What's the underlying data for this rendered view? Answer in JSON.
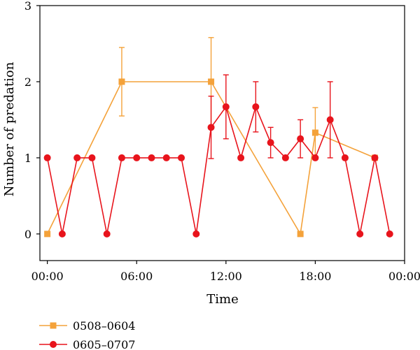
{
  "chart_data": {
    "type": "line",
    "xlabel": "Time",
    "ylabel": "Number of predation",
    "x_unit": "hour",
    "xlim": [
      -0.5,
      24.0
    ],
    "ylim": [
      -0.35,
      3
    ],
    "x_ticks": [
      {
        "x": 0,
        "label": "00:00"
      },
      {
        "x": 6,
        "label": "06:00"
      },
      {
        "x": 12,
        "label": "12:00"
      },
      {
        "x": 18,
        "label": "18:00"
      },
      {
        "x": 24,
        "label": "00:00"
      }
    ],
    "y_ticks": [
      {
        "y": 0,
        "label": "0"
      },
      {
        "y": 1,
        "label": "1"
      },
      {
        "y": 2,
        "label": "2"
      },
      {
        "y": 3,
        "label": "3"
      }
    ],
    "grid": false,
    "legend_position": "bottom-left, below plot",
    "series": [
      {
        "name": "0508–0604",
        "color": "#f4a23a",
        "marker": "square",
        "points": [
          {
            "x": 0,
            "y": 0
          },
          {
            "x": 5,
            "y": 2.0,
            "err": 0.45
          },
          {
            "x": 11,
            "y": 2.0,
            "err": 0.58
          },
          {
            "x": 17,
            "y": 0
          },
          {
            "x": 18,
            "y": 1.33,
            "err": 0.33
          },
          {
            "x": 22,
            "y": 1.0
          }
        ]
      },
      {
        "name": "0605–0707",
        "color": "#e8141c",
        "marker": "circle",
        "points": [
          {
            "x": 0,
            "y": 1
          },
          {
            "x": 1,
            "y": 0
          },
          {
            "x": 2,
            "y": 1
          },
          {
            "x": 3,
            "y": 1
          },
          {
            "x": 4,
            "y": 0
          },
          {
            "x": 5,
            "y": 1
          },
          {
            "x": 6,
            "y": 1
          },
          {
            "x": 7,
            "y": 1
          },
          {
            "x": 8,
            "y": 1
          },
          {
            "x": 9,
            "y": 1
          },
          {
            "x": 10,
            "y": 0
          },
          {
            "x": 11,
            "y": 1.4,
            "err": 0.41
          },
          {
            "x": 12,
            "y": 1.67,
            "err": 0.42
          },
          {
            "x": 13,
            "y": 1
          },
          {
            "x": 14,
            "y": 1.67,
            "err": 0.33
          },
          {
            "x": 15,
            "y": 1.2,
            "err": 0.2
          },
          {
            "x": 16,
            "y": 1
          },
          {
            "x": 17,
            "y": 1.25,
            "err": 0.25
          },
          {
            "x": 18,
            "y": 1
          },
          {
            "x": 19,
            "y": 1.5,
            "err": 0.5
          },
          {
            "x": 20,
            "y": 1
          },
          {
            "x": 21,
            "y": 0
          },
          {
            "x": 22,
            "y": 1
          },
          {
            "x": 23,
            "y": 0
          }
        ]
      }
    ]
  }
}
